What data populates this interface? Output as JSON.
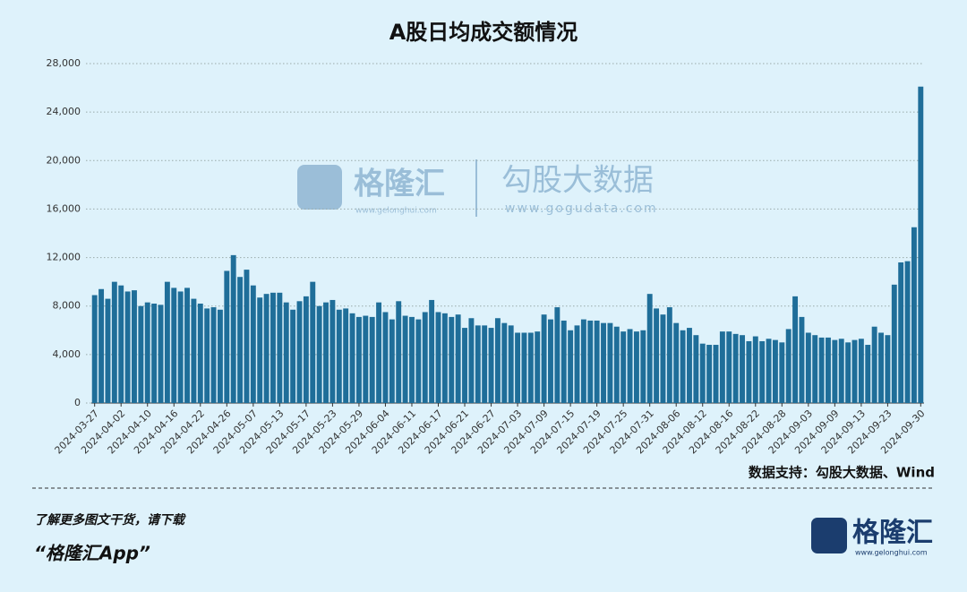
{
  "chart_data": {
    "type": "bar",
    "title": "A股日均成交额情况",
    "color": "#1f6e99",
    "categories": [
      "2024-03-27",
      null,
      null,
      null,
      "2024-04-02",
      null,
      null,
      null,
      "2024-04-10",
      null,
      null,
      null,
      "2024-04-16",
      null,
      null,
      null,
      "2024-04-22",
      null,
      null,
      null,
      "2024-04-26",
      null,
      null,
      null,
      "2024-05-07",
      null,
      null,
      null,
      "2024-05-13",
      null,
      null,
      null,
      "2024-05-17",
      null,
      null,
      null,
      "2024-05-23",
      null,
      null,
      null,
      "2024-05-29",
      null,
      null,
      null,
      "2024-06-04",
      null,
      null,
      null,
      "2024-06-11",
      null,
      null,
      null,
      "2024-06-17",
      null,
      null,
      null,
      "2024-06-21",
      null,
      null,
      null,
      "2024-06-27",
      null,
      null,
      null,
      "2024-07-03",
      null,
      null,
      null,
      "2024-07-09",
      null,
      null,
      null,
      "2024-07-15",
      null,
      null,
      null,
      "2024-07-19",
      null,
      null,
      null,
      "2024-07-25",
      null,
      null,
      null,
      "2024-07-31",
      null,
      null,
      null,
      "2024-08-06",
      null,
      null,
      null,
      "2024-08-12",
      null,
      null,
      null,
      "2024-08-16",
      null,
      null,
      null,
      "2024-08-22",
      null,
      null,
      null,
      "2024-08-28",
      null,
      null,
      null,
      "2024-09-03",
      null,
      null,
      null,
      "2024-09-09",
      null,
      null,
      null,
      "2024-09-13",
      null,
      null,
      null,
      "2024-09-23",
      null,
      null,
      null,
      null,
      "2024-09-30"
    ],
    "values": [
      8900,
      9400,
      8600,
      10000,
      9700,
      9200,
      9300,
      8000,
      8300,
      8200,
      8100,
      10000,
      9500,
      9200,
      9500,
      8600,
      8200,
      7800,
      7900,
      7700,
      10900,
      12200,
      10400,
      11000,
      9700,
      8700,
      9000,
      9100,
      9100,
      8300,
      7700,
      8400,
      8800,
      10000,
      8000,
      8300,
      8500,
      7700,
      7800,
      7400,
      7100,
      7200,
      7100,
      8300,
      7500,
      6900,
      8400,
      7200,
      7100,
      6900,
      7500,
      8500,
      7500,
      7400,
      7100,
      7300,
      6200,
      7000,
      6400,
      6400,
      6200,
      7000,
      6600,
      6400,
      5800,
      5800,
      5800,
      5900,
      7300,
      6900,
      7900,
      6800,
      6000,
      6400,
      6900,
      6800,
      6800,
      6600,
      6600,
      6300,
      5900,
      6100,
      5900,
      6000,
      9000,
      7800,
      7300,
      7900,
      6600,
      6000,
      6200,
      5600,
      4900,
      4800,
      4800,
      5900,
      5900,
      5700,
      5600,
      5100,
      5500,
      5100,
      5300,
      5200,
      5000,
      6100,
      8800,
      7100,
      5800,
      5600,
      5400,
      5400,
      5200,
      5300,
      5000,
      5200,
      5300,
      4800,
      6300,
      5800,
      5600,
      9765,
      11600,
      11700,
      14500,
      26100
    ],
    "ylim": [
      0,
      28000
    ],
    "yticks": [
      0,
      {
        "value": 4000,
        "label": "4,000"
      },
      {
        "value": 8000,
        "label": "8,000"
      },
      {
        "value": 12000,
        "label": "12,000"
      },
      {
        "value": 16000,
        "label": "16,000"
      },
      {
        "value": 20000,
        "label": "20,000"
      },
      {
        "value": 24000,
        "label": "24,000"
      },
      {
        "value": 28000,
        "label": "28,000"
      }
    ],
    "grid": true,
    "source": "数据支持：勾股大数据、Wind"
  },
  "watermark": {
    "brand": "格隆汇",
    "brand_url": "www.gelonghui.com",
    "partner": "勾股大数据",
    "partner_url": "www.gogudata.com"
  },
  "footer": {
    "line1": "了解更多图文干货，请下载",
    "line2": "“格隆汇App”",
    "logo": "格隆汇",
    "logo_url": "www.gelonghui.com"
  }
}
